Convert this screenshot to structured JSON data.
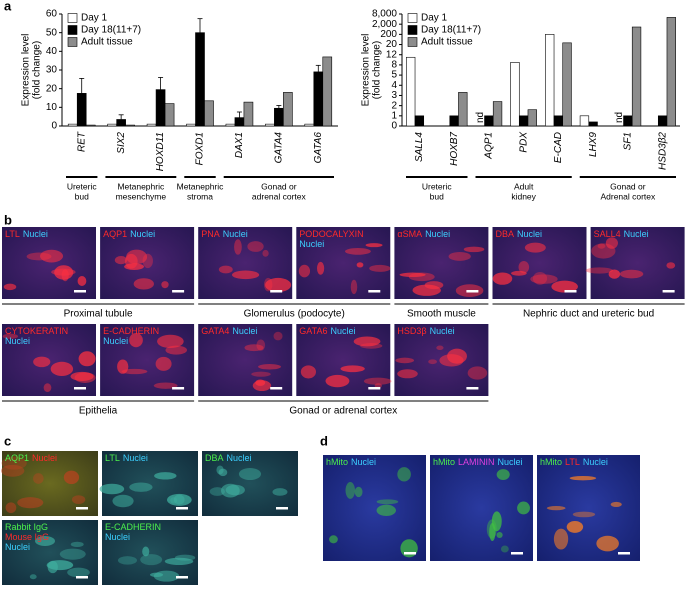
{
  "panel_labels": [
    "a",
    "b",
    "c",
    "d"
  ],
  "chart_data": [
    {
      "type": "bar",
      "ylabel": [
        "Expression level",
        "(fold change)"
      ],
      "categories": [
        "RET",
        "SIX2",
        "HOXD11",
        "FOXD1",
        "DAX1",
        "GATA4",
        "GATA6"
      ],
      "series": [
        {
          "name": "Day 1",
          "color": "#ffffff",
          "values": [
            1,
            1,
            1,
            1,
            1,
            1,
            1
          ]
        },
        {
          "name": "Day 18(11+7)",
          "color": "#000000",
          "values": [
            17.5,
            3.5,
            19.5,
            50,
            4.5,
            9.5,
            29
          ],
          "errors": [
            8,
            2.5,
            6.5,
            7.5,
            3,
            1.5,
            3.5
          ]
        },
        {
          "name": "Adult tissue",
          "color": "#8c8c8c",
          "values": [
            0.5,
            0.5,
            12,
            13.5,
            12.8,
            18,
            37
          ]
        }
      ],
      "ylim": [
        0,
        60
      ],
      "yticks": [
        0,
        10,
        20,
        30,
        40,
        50,
        60
      ],
      "yscale": "linear",
      "legend": "upper-left",
      "groups": [
        {
          "label": [
            "Ureteric",
            "bud"
          ],
          "count": 1
        },
        {
          "label": [
            "Metanephric",
            "mesenchyme"
          ],
          "count": 2
        },
        {
          "label": [
            "Metanephric",
            "stroma"
          ],
          "count": 1
        },
        {
          "label": [
            "Gonad or",
            "adrenal cortex"
          ],
          "count": 3
        }
      ]
    },
    {
      "type": "bar",
      "ylabel": [
        "Expression level",
        "(fold change)"
      ],
      "categories": [
        "SALL4",
        "HOXB7",
        "AQP1",
        "PDX",
        "E-CAD",
        "LHX9",
        "SF1",
        "HSD3β2"
      ],
      "series": [
        {
          "name": "Day 1",
          "color": "#ffffff",
          "values": [
            11,
            null,
            null,
            9,
            200,
            1,
            null,
            null
          ],
          "value_labels": [
            null,
            null,
            "nd",
            null,
            null,
            null,
            "nd",
            null
          ]
        },
        {
          "name": "Day 18(11+7)",
          "color": "#000000",
          "values": [
            1,
            1,
            1,
            1,
            1,
            0.4,
            1,
            1
          ]
        },
        {
          "name": "Adult tissue",
          "color": "#8c8c8c",
          "values": [
            null,
            3.3,
            2.4,
            1.6,
            50,
            null,
            1500,
            6000
          ]
        }
      ],
      "ylim": [
        0,
        8000
      ],
      "yticks": [
        0,
        1,
        2,
        3,
        4,
        5,
        8,
        12,
        20,
        200,
        {
          "value": 2000,
          "label": "2,000"
        },
        {
          "value": 8000,
          "label": "8,000"
        }
      ],
      "yscale": "piecewise",
      "legend": "upper-left",
      "groups": [
        {
          "label": [
            "Ureteric",
            "bud"
          ],
          "count": 2
        },
        {
          "label": [
            "Adult",
            "kidney"
          ],
          "count": 3
        },
        {
          "label": [
            "Gonad or",
            "Adrenal cortex"
          ],
          "count": 3
        }
      ]
    }
  ],
  "panel_b": {
    "rows": [
      {
        "tiles": [
          {
            "label": [
              [
                {
                  "text": "LTL",
                  "color": "#ff2a2a"
                },
                {
                  "text": "Nuclei",
                  "color": "#3cd0ff"
                }
              ]
            ]
          },
          {
            "label": [
              [
                {
                  "text": "AQP1",
                  "color": "#ff2a2a"
                },
                {
                  "text": "Nuclei",
                  "color": "#3cd0ff"
                }
              ]
            ]
          },
          {
            "label": [
              [
                {
                  "text": "PNA",
                  "color": "#ff2a2a"
                },
                {
                  "text": "Nuclei",
                  "color": "#3cd0ff"
                }
              ]
            ]
          },
          {
            "label": [
              [
                {
                  "text": "PODOCALYXIN",
                  "color": "#ff2a2a"
                }
              ],
              [
                {
                  "text": "Nuclei",
                  "color": "#3cd0ff"
                }
              ]
            ]
          },
          {
            "label": [
              [
                {
                  "text": "αSMA",
                  "color": "#ff2a2a"
                },
                {
                  "text": "Nuclei",
                  "color": "#3cd0ff"
                }
              ]
            ]
          },
          {
            "label": [
              [
                {
                  "text": "DBA",
                  "color": "#ff2a2a"
                },
                {
                  "text": "Nuclei",
                  "color": "#3cd0ff"
                }
              ]
            ]
          },
          {
            "label": [
              [
                {
                  "text": "SALL4",
                  "color": "#ff2a2a"
                },
                {
                  "text": "Nuclei",
                  "color": "#3cd0ff"
                }
              ]
            ]
          }
        ],
        "groups": [
          {
            "label": "Proximal tubule",
            "count": 2
          },
          {
            "label": "Glomerulus (podocyte)",
            "count": 2
          },
          {
            "label": "Smooth muscle",
            "count": 1
          },
          {
            "label": "Nephric duct and ureteric bud",
            "count": 2
          }
        ]
      },
      {
        "tiles": [
          {
            "label": [
              [
                {
                  "text": "CYTOKERATIN",
                  "color": "#ff2a2a"
                }
              ],
              [
                {
                  "text": "Nuclei",
                  "color": "#3cd0ff"
                }
              ]
            ]
          },
          {
            "label": [
              [
                {
                  "text": "E-CADHERIN",
                  "color": "#ff2a2a"
                }
              ],
              [
                {
                  "text": "Nuclei",
                  "color": "#3cd0ff"
                }
              ]
            ]
          },
          {
            "label": [
              [
                {
                  "text": "GATA4",
                  "color": "#ff2a2a"
                },
                {
                  "text": "Nuclei",
                  "color": "#3cd0ff"
                }
              ]
            ]
          },
          {
            "label": [
              [
                {
                  "text": "GATA6",
                  "color": "#ff2a2a"
                },
                {
                  "text": "Nuclei",
                  "color": "#3cd0ff"
                }
              ]
            ]
          },
          {
            "label": [
              [
                {
                  "text": "HSD3β",
                  "color": "#ff2a2a"
                },
                {
                  "text": "Nuclei",
                  "color": "#3cd0ff"
                }
              ]
            ]
          }
        ],
        "groups": [
          {
            "label": "Epithelia",
            "count": 2
          },
          {
            "label": "Gonad or adrenal cortex",
            "count": 3
          }
        ]
      }
    ]
  },
  "panel_c": {
    "rows": [
      {
        "tiles": [
          {
            "label": [
              [
                {
                  "text": "AQP1",
                  "color": "#4cf04c"
                },
                {
                  "text": "Nuclei",
                  "color": "#ff2a2a"
                }
              ]
            ]
          },
          {
            "label": [
              [
                {
                  "text": "LTL",
                  "color": "#4cf04c"
                },
                {
                  "text": "Nuclei",
                  "color": "#3cd0ff"
                }
              ]
            ]
          },
          {
            "label": [
              [
                {
                  "text": "DBA",
                  "color": "#4cf04c"
                },
                {
                  "text": "Nuclei",
                  "color": "#3cd0ff"
                }
              ]
            ]
          }
        ]
      },
      {
        "tiles": [
          {
            "label": [
              [
                {
                  "text": "Rabbit IgG",
                  "color": "#4cf04c"
                }
              ],
              [
                {
                  "text": "Mouse IgG",
                  "color": "#ff2a2a"
                }
              ],
              [
                {
                  "text": "Nuclei",
                  "color": "#3cd0ff"
                }
              ]
            ]
          },
          {
            "label": [
              [
                {
                  "text": "E-CADHERIN",
                  "color": "#4cf04c"
                }
              ],
              [
                {
                  "text": "Nuclei",
                  "color": "#3cd0ff"
                }
              ]
            ]
          }
        ]
      }
    ]
  },
  "panel_d": {
    "tiles": [
      {
        "label": [
          [
            {
              "text": "hMito",
              "color": "#4cf04c"
            },
            {
              "text": "Nuclei",
              "color": "#3cd0ff"
            }
          ]
        ]
      },
      {
        "label": [
          [
            {
              "text": "hMito",
              "color": "#4cf04c"
            },
            {
              "text": "LAMININ",
              "color": "#e040e0"
            },
            {
              "text": "Nuclei",
              "color": "#3cd0ff"
            }
          ]
        ]
      },
      {
        "label": [
          [
            {
              "text": "hMito",
              "color": "#4cf04c"
            },
            {
              "text": "LTL",
              "color": "#ff2a2a"
            },
            {
              "text": "Nuclei",
              "color": "#3cd0ff"
            }
          ]
        ]
      }
    ]
  }
}
